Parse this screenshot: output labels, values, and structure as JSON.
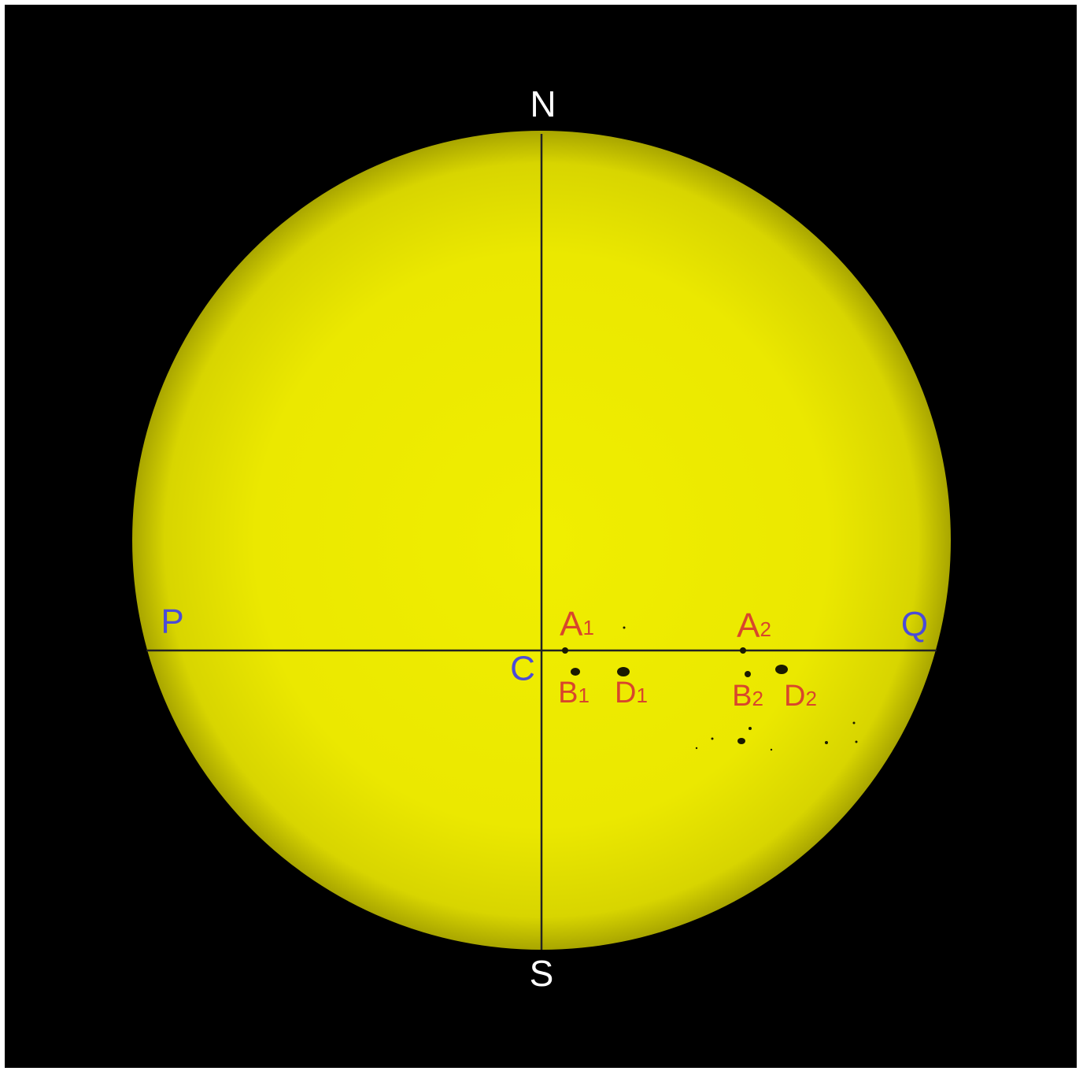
{
  "directions": {
    "north": "N",
    "south": "S"
  },
  "axis_points": {
    "P": "P",
    "Q": "Q",
    "C": "C"
  },
  "spots": [
    {
      "letter": "A",
      "index": "1"
    },
    {
      "letter": "B",
      "index": "1"
    },
    {
      "letter": "D",
      "index": "1"
    },
    {
      "letter": "A",
      "index": "2"
    },
    {
      "letter": "B",
      "index": "2"
    },
    {
      "letter": "D",
      "index": "2"
    }
  ]
}
